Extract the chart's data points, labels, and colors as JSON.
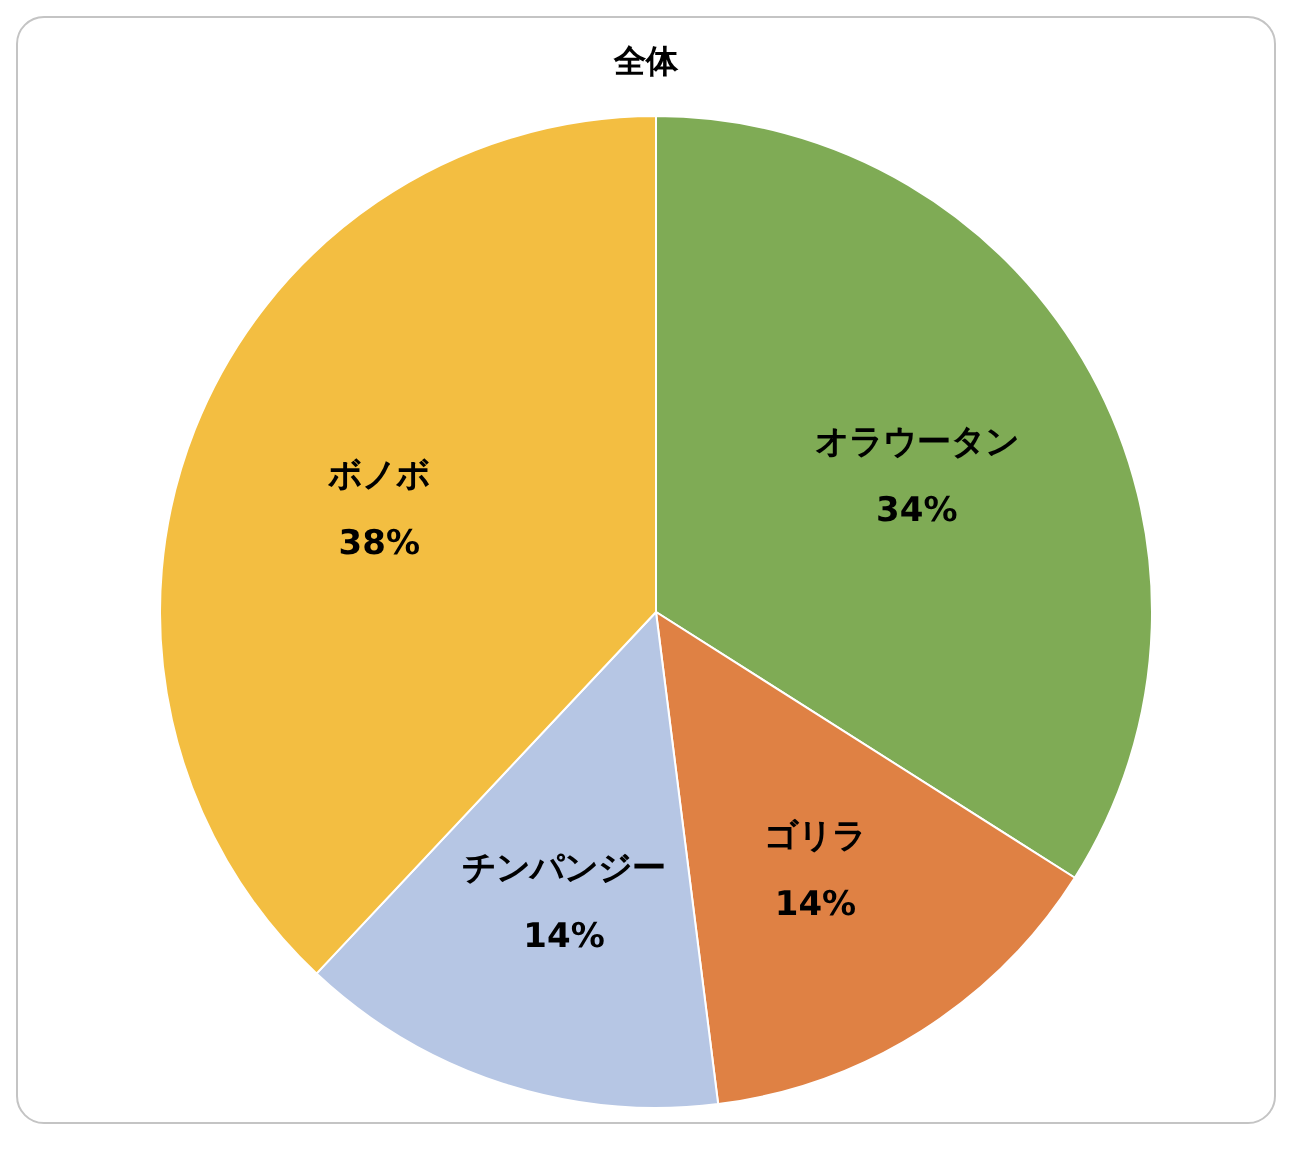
{
  "chart_data": {
    "type": "pie",
    "title": "全体",
    "categories": [
      "オラウータン",
      "ゴリラ",
      "チンパンジー",
      "ボノボ"
    ],
    "values": [
      34,
      14,
      14,
      38
    ],
    "value_labels": [
      "34%",
      "14%",
      "14%",
      "38%"
    ],
    "colors": [
      "#7fab55",
      "#df8144",
      "#b6c6e4",
      "#f3be41"
    ],
    "legend": false
  }
}
